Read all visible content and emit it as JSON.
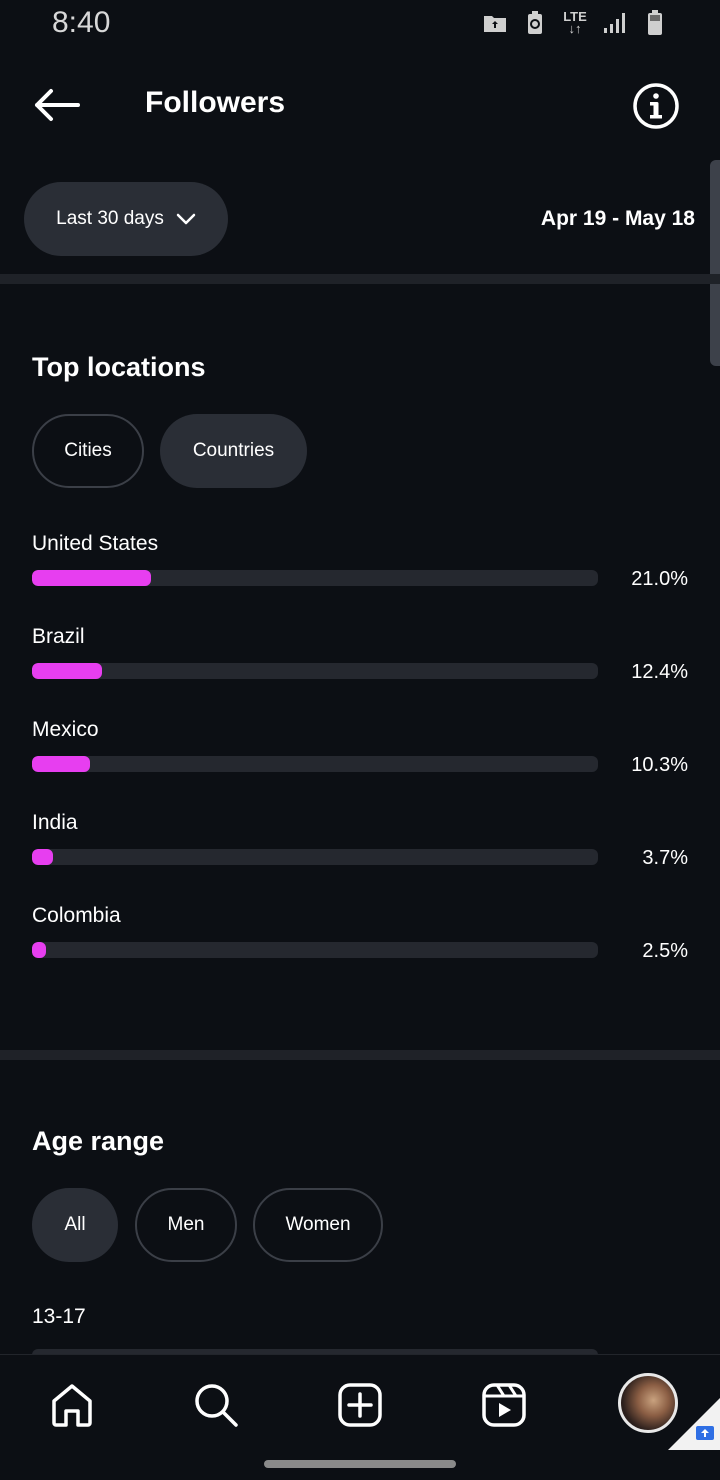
{
  "status_bar": {
    "time": "8:40",
    "network": "LTE"
  },
  "header": {
    "title": "Followers"
  },
  "filter": {
    "range_label": "Last 30 days",
    "date_range": "Apr 19 - May 18"
  },
  "top_locations": {
    "title": "Top locations",
    "tabs": [
      {
        "label": "Cities"
      },
      {
        "label": "Countries"
      }
    ],
    "selected_tab": "Countries",
    "items": [
      {
        "name": "United States",
        "percent_text": "21.0%",
        "percent": 21.0
      },
      {
        "name": "Brazil",
        "percent_text": "12.4%",
        "percent": 12.4
      },
      {
        "name": "Mexico",
        "percent_text": "10.3%",
        "percent": 10.3
      },
      {
        "name": "India",
        "percent_text": "3.7%",
        "percent": 3.7
      },
      {
        "name": "Colombia",
        "percent_text": "2.5%",
        "percent": 2.5
      }
    ],
    "bar_color": "#e73ef0"
  },
  "age_range": {
    "title": "Age range",
    "tabs": [
      {
        "label": "All"
      },
      {
        "label": "Men"
      },
      {
        "label": "Women"
      }
    ],
    "selected_tab": "All",
    "first_row_label": "13-17"
  },
  "bottom_nav": {
    "items": [
      {
        "icon": "home-icon"
      },
      {
        "icon": "search-icon"
      },
      {
        "icon": "create-post-icon"
      },
      {
        "icon": "reels-icon"
      },
      {
        "icon": "profile-avatar"
      }
    ]
  }
}
